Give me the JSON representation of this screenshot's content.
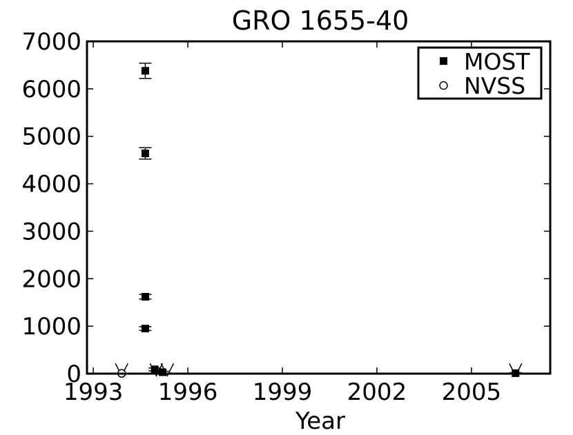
{
  "chart_data": {
    "type": "scatter",
    "title": "GRO 1655-40",
    "xlabel": "Year",
    "ylabel": "",
    "xlim": [
      1992.8,
      2007.5
    ],
    "ylim": [
      0,
      7000
    ],
    "xticks": [
      1993,
      1996,
      1999,
      2002,
      2005
    ],
    "yticks": [
      0,
      1000,
      2000,
      3000,
      4000,
      5000,
      6000,
      7000
    ],
    "grid": false,
    "legend": {
      "placement": "top-right",
      "entries": [
        "MOST",
        "NVSS"
      ]
    },
    "series": [
      {
        "name": "MOST",
        "marker": "filled-square",
        "points": [
          {
            "x": 1994.65,
            "y": 6380,
            "err": 160
          },
          {
            "x": 1994.65,
            "y": 4640,
            "err": 120
          },
          {
            "x": 1994.65,
            "y": 1620,
            "err": 50
          },
          {
            "x": 1994.65,
            "y": 950,
            "err": 40
          },
          {
            "x": 1994.95,
            "y": 90,
            "err": 30
          },
          {
            "x": 1995.2,
            "y": 30,
            "err": 20
          },
          {
            "x": 2006.4,
            "y": 10,
            "err": 10
          }
        ]
      },
      {
        "name": "NVSS",
        "marker": "open-circle",
        "points": [
          {
            "x": 1993.9,
            "y": 5
          }
        ]
      }
    ],
    "upper_limits": [
      {
        "x": 1993.9,
        "y": 40
      },
      {
        "x": 1995.0,
        "y": 40
      },
      {
        "x": 1995.35,
        "y": 40
      },
      {
        "x": 2006.4,
        "y": 40
      }
    ]
  }
}
